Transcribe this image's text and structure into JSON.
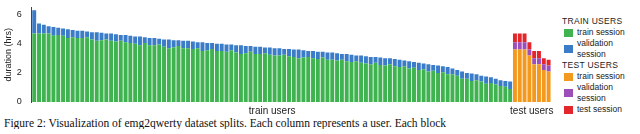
{
  "chart_data": {
    "type": "bar",
    "stacked": true,
    "grid": false,
    "tick_labels": "y",
    "y_label": "duration (hrs)",
    "caption": "Figure 2: Visualization of emg2qwerty dataset splits. Each column represents a user. Each block",
    "ylim": [
      0,
      6.5
    ],
    "yticks": [
      0,
      2,
      4,
      6
    ],
    "groups": [
      {
        "name": "TRAIN USERS",
        "label": "train users"
      },
      {
        "name": "TEST USERS",
        "label": "test users"
      }
    ],
    "categories": [
      null,
      null,
      null,
      null,
      null,
      null,
      null,
      null,
      null,
      null,
      null,
      null,
      null,
      null,
      null,
      null,
      null,
      null,
      null,
      null,
      null,
      null,
      null,
      null,
      null,
      null,
      null,
      null,
      null,
      null,
      null,
      null,
      null,
      null,
      null,
      null,
      null,
      null,
      null,
      null,
      null,
      null,
      null,
      null,
      null,
      null,
      null,
      null,
      null,
      null,
      null,
      null,
      null,
      null,
      null,
      null,
      null,
      null,
      null,
      null,
      null,
      null,
      null,
      null,
      null,
      null,
      null,
      null,
      null,
      null,
      null,
      null,
      null,
      null,
      null,
      null,
      null,
      null,
      null,
      null,
      null,
      null,
      null,
      null,
      null,
      null,
      null,
      null,
      null,
      null,
      null,
      null,
      null,
      null,
      null,
      null,
      null,
      null,
      null,
      null,
      null,
      null,
      null,
      null,
      null,
      null,
      null,
      null
    ],
    "series": [
      {
        "name": "train session",
        "group": 0,
        "color": "#3fb34f",
        "values": [
          4.7,
          4.7,
          4.7,
          4.7,
          4.55,
          4.6,
          4.55,
          4.4,
          4.45,
          4.4,
          4.4,
          4.45,
          4.3,
          4.2,
          4.25,
          4.3,
          4.2,
          4.15,
          4.2,
          4.1,
          4.05,
          4.0,
          3.9,
          4.05,
          3.9,
          3.9,
          3.95,
          3.8,
          3.7,
          3.75,
          3.85,
          3.7,
          3.7,
          3.65,
          3.7,
          3.5,
          3.55,
          3.65,
          3.5,
          3.5,
          3.45,
          3.55,
          3.4,
          3.3,
          3.35,
          3.45,
          3.3,
          3.3,
          3.35,
          3.25,
          3.2,
          3.2,
          3.25,
          3.15,
          3.1,
          3.0,
          3.05,
          3.1,
          3.0,
          2.95,
          3.05,
          2.9,
          2.9,
          2.85,
          2.9,
          2.8,
          2.75,
          2.8,
          2.7,
          2.65,
          2.6,
          2.7,
          2.55,
          2.5,
          2.6,
          2.45,
          2.4,
          2.45,
          2.3,
          2.35,
          2.2,
          2.25,
          2.1,
          2.15,
          2.0,
          2.05,
          1.9,
          1.9,
          1.8,
          1.6,
          1.6,
          1.45,
          1.5,
          1.4,
          1.25,
          1.3,
          1.2,
          1.1,
          1.05,
          0.9,
          null,
          null,
          null,
          null,
          null,
          null,
          null,
          null
        ]
      },
      {
        "name": "validation session",
        "group": 0,
        "color": "#3a7cc8",
        "values": [
          1.6,
          0.7,
          0.6,
          0.5,
          0.6,
          0.5,
          0.5,
          0.6,
          0.5,
          0.5,
          0.5,
          0.4,
          0.5,
          0.6,
          0.5,
          0.4,
          0.5,
          0.5,
          0.4,
          0.5,
          0.5,
          0.5,
          0.6,
          0.4,
          0.5,
          0.5,
          0.4,
          0.5,
          0.6,
          0.5,
          0.4,
          0.5,
          0.5,
          0.5,
          0.4,
          0.6,
          0.5,
          0.4,
          0.5,
          0.5,
          0.5,
          0.4,
          0.5,
          0.6,
          0.5,
          0.4,
          0.5,
          0.5,
          0.4,
          0.5,
          0.5,
          0.5,
          0.4,
          0.5,
          0.5,
          0.6,
          0.5,
          0.4,
          0.5,
          0.5,
          0.4,
          0.5,
          0.5,
          0.5,
          0.4,
          0.5,
          0.5,
          0.4,
          0.5,
          0.5,
          0.5,
          0.4,
          0.5,
          0.5,
          0.4,
          0.5,
          0.5,
          0.4,
          0.5,
          0.4,
          0.5,
          0.4,
          0.5,
          0.4,
          0.5,
          0.4,
          0.5,
          0.4,
          0.4,
          0.5,
          0.4,
          0.5,
          0.4,
          0.4,
          0.5,
          0.4,
          0.4,
          0.4,
          0.4,
          0.5,
          null,
          null,
          null,
          null,
          null,
          null,
          null,
          null
        ]
      },
      {
        "name": "train session",
        "group": 1,
        "color": "#f39a1e",
        "values": [
          null,
          null,
          null,
          null,
          null,
          null,
          null,
          null,
          null,
          null,
          null,
          null,
          null,
          null,
          null,
          null,
          null,
          null,
          null,
          null,
          null,
          null,
          null,
          null,
          null,
          null,
          null,
          null,
          null,
          null,
          null,
          null,
          null,
          null,
          null,
          null,
          null,
          null,
          null,
          null,
          null,
          null,
          null,
          null,
          null,
          null,
          null,
          null,
          null,
          null,
          null,
          null,
          null,
          null,
          null,
          null,
          null,
          null,
          null,
          null,
          null,
          null,
          null,
          null,
          null,
          null,
          null,
          null,
          null,
          null,
          null,
          null,
          null,
          null,
          null,
          null,
          null,
          null,
          null,
          null,
          null,
          null,
          null,
          null,
          null,
          null,
          null,
          null,
          null,
          null,
          null,
          null,
          null,
          null,
          null,
          null,
          null,
          null,
          null,
          null,
          3.6,
          3.6,
          3.6,
          3.2,
          2.6,
          2.6,
          2.2,
          2.1
        ]
      },
      {
        "name": "validation session",
        "group": 1,
        "color": "#9c4fb8",
        "values": [
          null,
          null,
          null,
          null,
          null,
          null,
          null,
          null,
          null,
          null,
          null,
          null,
          null,
          null,
          null,
          null,
          null,
          null,
          null,
          null,
          null,
          null,
          null,
          null,
          null,
          null,
          null,
          null,
          null,
          null,
          null,
          null,
          null,
          null,
          null,
          null,
          null,
          null,
          null,
          null,
          null,
          null,
          null,
          null,
          null,
          null,
          null,
          null,
          null,
          null,
          null,
          null,
          null,
          null,
          null,
          null,
          null,
          null,
          null,
          null,
          null,
          null,
          null,
          null,
          null,
          null,
          null,
          null,
          null,
          null,
          null,
          null,
          null,
          null,
          null,
          null,
          null,
          null,
          null,
          null,
          null,
          null,
          null,
          null,
          null,
          null,
          null,
          null,
          null,
          null,
          null,
          null,
          null,
          null,
          null,
          null,
          null,
          null,
          null,
          null,
          0.5,
          0.5,
          0.5,
          0.4,
          0.4,
          0.4,
          0.4,
          0.4
        ]
      },
      {
        "name": "test session",
        "group": 1,
        "color": "#e2262a",
        "values": [
          null,
          null,
          null,
          null,
          null,
          null,
          null,
          null,
          null,
          null,
          null,
          null,
          null,
          null,
          null,
          null,
          null,
          null,
          null,
          null,
          null,
          null,
          null,
          null,
          null,
          null,
          null,
          null,
          null,
          null,
          null,
          null,
          null,
          null,
          null,
          null,
          null,
          null,
          null,
          null,
          null,
          null,
          null,
          null,
          null,
          null,
          null,
          null,
          null,
          null,
          null,
          null,
          null,
          null,
          null,
          null,
          null,
          null,
          null,
          null,
          null,
          null,
          null,
          null,
          null,
          null,
          null,
          null,
          null,
          null,
          null,
          null,
          null,
          null,
          null,
          null,
          null,
          null,
          null,
          null,
          null,
          null,
          null,
          null,
          null,
          null,
          null,
          null,
          null,
          null,
          null,
          null,
          null,
          null,
          null,
          null,
          null,
          null,
          null,
          null,
          0.6,
          0.6,
          0.6,
          0.5,
          0.5,
          0.5,
          0.4,
          0.4
        ]
      }
    ]
  }
}
